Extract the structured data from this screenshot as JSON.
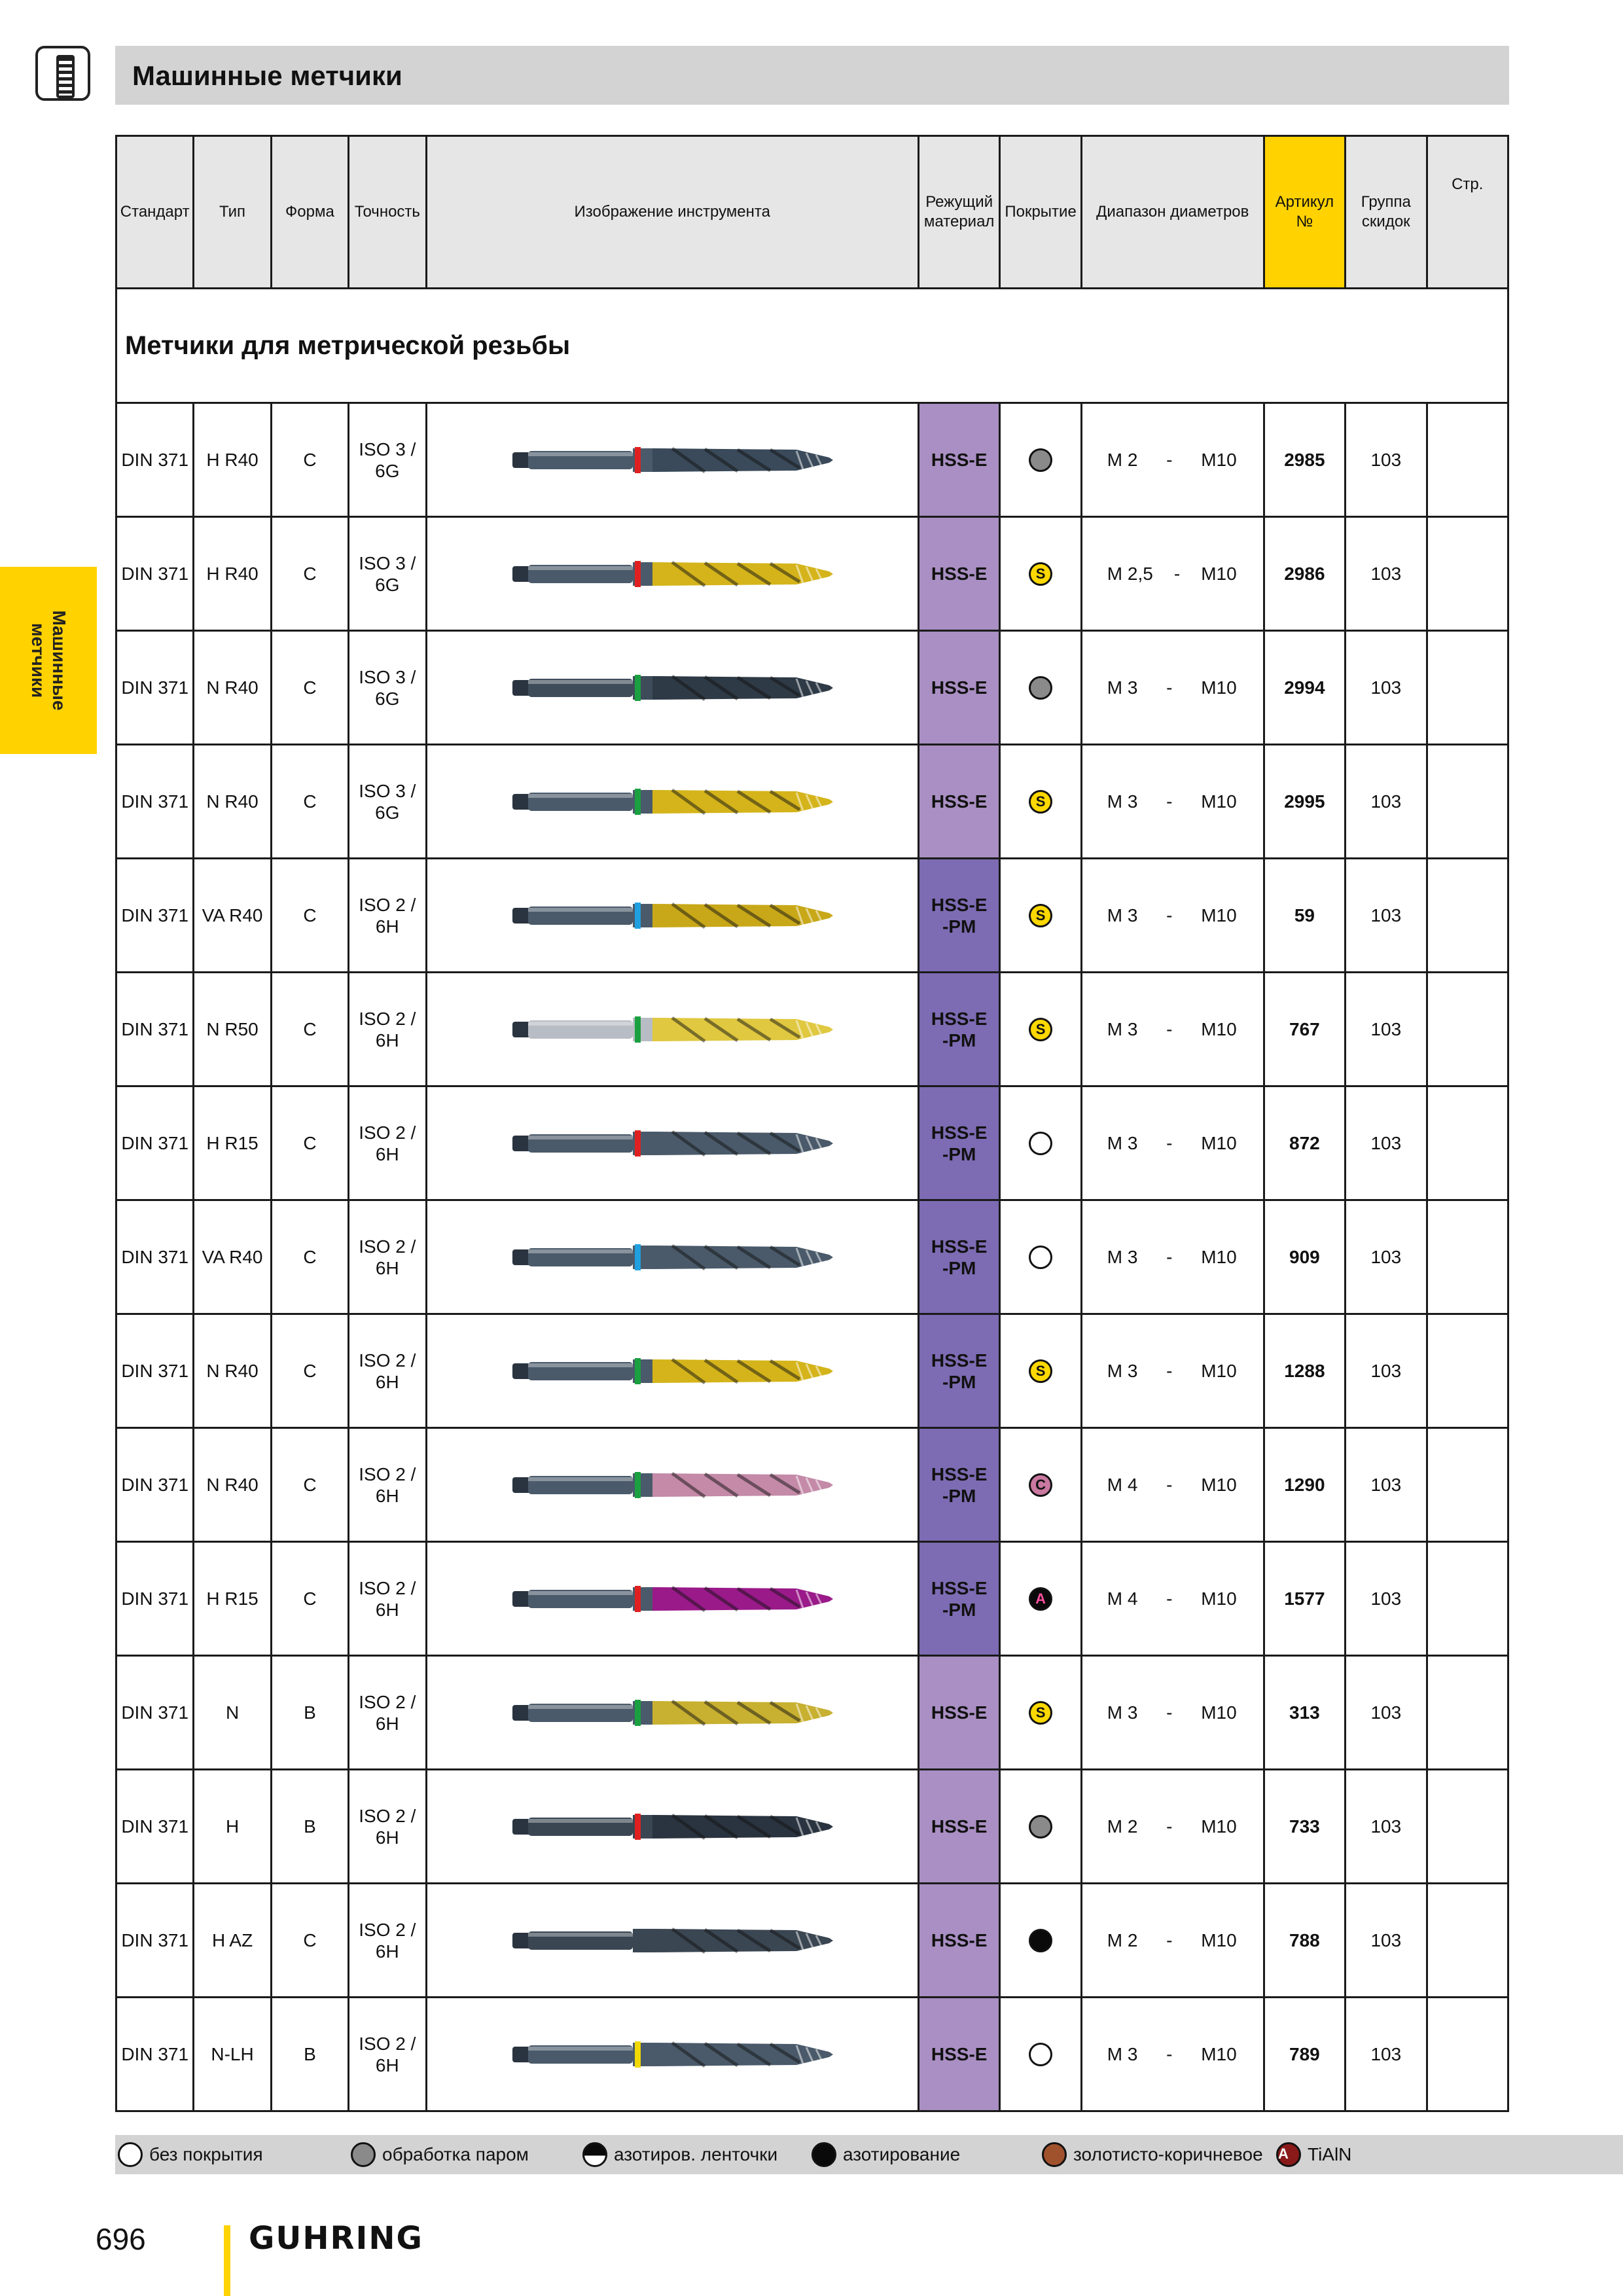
{
  "header": {
    "title": "Машинные метчики",
    "icon": "tap-icon"
  },
  "side_tab": {
    "label": "Машинные\nметчики"
  },
  "columns": {
    "standard": "Стандарт",
    "type": "Тип",
    "form": "Форма",
    "accuracy": "Точность",
    "image": "Изображение инструмента",
    "material": "Режущий материал",
    "coating": "Покрытие",
    "range": "Диапазон диаметров",
    "article": "Артикул №",
    "discount": "Группа скидок",
    "page": "Стр."
  },
  "section_title": "Метчики для метрической резьбы",
  "rows": [
    {
      "standard": "DIN 371",
      "type": "H R40",
      "form": "C",
      "accuracy": "ISO 3 / 6G",
      "material": "HSS-E",
      "coating": "steam",
      "coating_letter": "",
      "range_from": "M 2",
      "range_sep": "-",
      "range_to": "M10",
      "article": "2985",
      "discount": "103",
      "band": "#e02020",
      "flute": "#3a4a5a",
      "shank": "#4a5a6a"
    },
    {
      "standard": "DIN 371",
      "type": "H R40",
      "form": "C",
      "accuracy": "ISO 3 / 6G",
      "material": "HSS-E",
      "coating": "tin",
      "coating_letter": "S",
      "range_from": "M 2,5",
      "range_sep": "-",
      "range_to": "M10",
      "article": "2986",
      "discount": "103",
      "band": "#e02020",
      "flute": "#d4b41a",
      "shank": "#4a5a6a"
    },
    {
      "standard": "DIN 371",
      "type": "N R40",
      "form": "C",
      "accuracy": "ISO 3 / 6G",
      "material": "HSS-E",
      "coating": "steam",
      "coating_letter": "",
      "range_from": "M 3",
      "range_sep": "-",
      "range_to": "M10",
      "article": "2994",
      "discount": "103",
      "band": "#1aa040",
      "flute": "#2e3a46",
      "shank": "#3e4c5a"
    },
    {
      "standard": "DIN 371",
      "type": "N R40",
      "form": "C",
      "accuracy": "ISO 3 / 6G",
      "material": "HSS-E",
      "coating": "tin",
      "coating_letter": "S",
      "range_from": "M 3",
      "range_sep": "-",
      "range_to": "M10",
      "article": "2995",
      "discount": "103",
      "band": "#1aa040",
      "flute": "#d4b41a",
      "shank": "#4a5a6a"
    },
    {
      "standard": "DIN 371",
      "type": "VA R40",
      "form": "C",
      "accuracy": "ISO 2 / 6H",
      "material": "HSS-E-PM",
      "coating": "tin",
      "coating_letter": "S",
      "range_from": "M 3",
      "range_sep": "-",
      "range_to": "M10",
      "article": "59",
      "discount": "103",
      "band": "#20a0e0",
      "flute": "#c8a818",
      "shank": "#4a5a6a"
    },
    {
      "standard": "DIN 371",
      "type": "N R50",
      "form": "C",
      "accuracy": "ISO 2 / 6H",
      "material": "HSS-E-PM",
      "coating": "tin",
      "coating_letter": "S",
      "range_from": "M 3",
      "range_sep": "-",
      "range_to": "M10",
      "article": "767",
      "discount": "103",
      "band": "#1aa040",
      "flute": "#e0c840",
      "shank": "#b8bcc4"
    },
    {
      "standard": "DIN 371",
      "type": "H R15",
      "form": "C",
      "accuracy": "ISO 2 / 6H",
      "material": "HSS-E-PM",
      "coating": "none",
      "coating_letter": "",
      "range_from": "M 3",
      "range_sep": "-",
      "range_to": "M10",
      "article": "872",
      "discount": "103",
      "band": "#e02020",
      "flute": "#4a5a6a",
      "shank": "#4a5a6a"
    },
    {
      "standard": "DIN 371",
      "type": "VA R40",
      "form": "C",
      "accuracy": "ISO 2 / 6H",
      "material": "HSS-E-PM",
      "coating": "none",
      "coating_letter": "",
      "range_from": "M 3",
      "range_sep": "-",
      "range_to": "M10",
      "article": "909",
      "discount": "103",
      "band": "#20a0e0",
      "flute": "#4a5a6a",
      "shank": "#4a5a6a"
    },
    {
      "standard": "DIN 371",
      "type": "N R40",
      "form": "C",
      "accuracy": "ISO 2 / 6H",
      "material": "HSS-E-PM",
      "coating": "tin",
      "coating_letter": "S",
      "range_from": "M 3",
      "range_sep": "-",
      "range_to": "M10",
      "article": "1288",
      "discount": "103",
      "band": "#1aa040",
      "flute": "#d4b41a",
      "shank": "#4a5a6a"
    },
    {
      "standard": "DIN 371",
      "type": "N R40",
      "form": "C",
      "accuracy": "ISO 2 / 6H",
      "material": "HSS-E-PM",
      "coating": "ticn",
      "coating_letter": "C",
      "range_from": "M 4",
      "range_sep": "-",
      "range_to": "M10",
      "article": "1290",
      "discount": "103",
      "band": "#1aa040",
      "flute": "#c48aa8",
      "shank": "#4a5a6a"
    },
    {
      "standard": "DIN 371",
      "type": "H R15",
      "form": "C",
      "accuracy": "ISO 2 / 6H",
      "material": "HSS-E-PM",
      "coating": "tialn",
      "coating_letter": "A",
      "range_from": "M 4",
      "range_sep": "-",
      "range_to": "M10",
      "article": "1577",
      "discount": "103",
      "band": "#e02020",
      "flute": "#9a1a8a",
      "shank": "#4a5a6a"
    },
    {
      "standard": "DIN 371",
      "type": "N",
      "form": "B",
      "accuracy": "ISO 2 / 6H",
      "material": "HSS-E",
      "coating": "tin",
      "coating_letter": "S",
      "range_from": "M 3",
      "range_sep": "-",
      "range_to": "M10",
      "article": "313",
      "discount": "103",
      "band": "#1aa040",
      "flute": "#c8b030",
      "shank": "#4a5a6a"
    },
    {
      "standard": "DIN 371",
      "type": "H",
      "form": "B",
      "accuracy": "ISO 2 / 6H",
      "material": "HSS-E",
      "coating": "steam",
      "coating_letter": "",
      "range_from": "M 2",
      "range_sep": "-",
      "range_to": "M10",
      "article": "733",
      "discount": "103",
      "band": "#e02020",
      "flute": "#2a3440",
      "shank": "#3a4652"
    },
    {
      "standard": "DIN 371",
      "type": "H AZ",
      "form": "C",
      "accuracy": "ISO 2 / 6H",
      "material": "HSS-E",
      "coating": "nit",
      "coating_letter": "",
      "range_from": "M 2",
      "range_sep": "-",
      "range_to": "M10",
      "article": "788",
      "discount": "103",
      "band": "",
      "flute": "#3a4652",
      "shank": "#3a4652"
    },
    {
      "standard": "DIN 371",
      "type": "N-LH",
      "form": "B",
      "accuracy": "ISO 2 / 6H",
      "material": "HSS-E",
      "coating": "none",
      "coating_letter": "",
      "range_from": "M 3",
      "range_sep": "-",
      "range_to": "M10",
      "article": "789",
      "discount": "103",
      "band": "#f0d800",
      "flute": "#4a5a6a",
      "shank": "#4a5a6a"
    }
  ],
  "legend": [
    {
      "icon": "none",
      "label": "без покрытия"
    },
    {
      "icon": "steam",
      "label": "обработка паром"
    },
    {
      "icon": "tape",
      "label": "азотиров. ленточки"
    },
    {
      "icon": "nit",
      "label": "азотирование"
    },
    {
      "icon": "brown",
      "label": "золотисто-коричневое"
    },
    {
      "icon": "tialnL",
      "letter": "A",
      "label": "TiAlN"
    }
  ],
  "footer": {
    "page_number": "696",
    "brand": "GUHRING"
  },
  "colors": {
    "accent_yellow": "#ffd200",
    "header_gray": "#d3d3d3",
    "hss_e": "#a98fc3",
    "hss_e_pm": "#7d6bb3"
  }
}
